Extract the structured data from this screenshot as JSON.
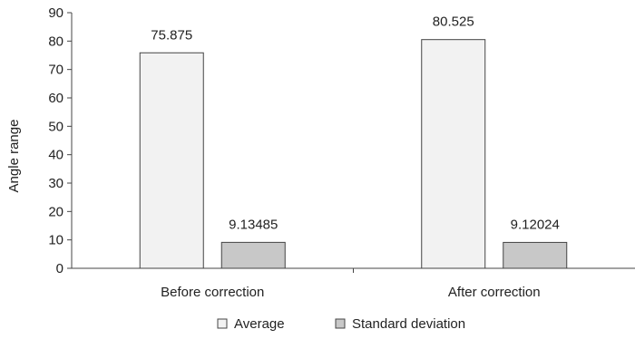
{
  "chart_data": {
    "type": "bar",
    "categories": [
      "Before correction",
      "After correction"
    ],
    "series": [
      {
        "name": "Average",
        "values": [
          75.875,
          80.525
        ],
        "labels": [
          "75.875",
          "80.525"
        ],
        "color": "#f2f2f2"
      },
      {
        "name": "Standard deviation",
        "values": [
          9.13485,
          9.12024
        ],
        "labels": [
          "9.13485",
          "9.12024"
        ],
        "color": "#c8c8c8"
      }
    ],
    "title": "",
    "xlabel": "",
    "ylabel": "Angle range",
    "ylim": [
      0,
      90
    ],
    "yticks": [
      0,
      10,
      20,
      30,
      40,
      50,
      60,
      70,
      80,
      90
    ],
    "grid": false,
    "legend_position": "bottom"
  }
}
